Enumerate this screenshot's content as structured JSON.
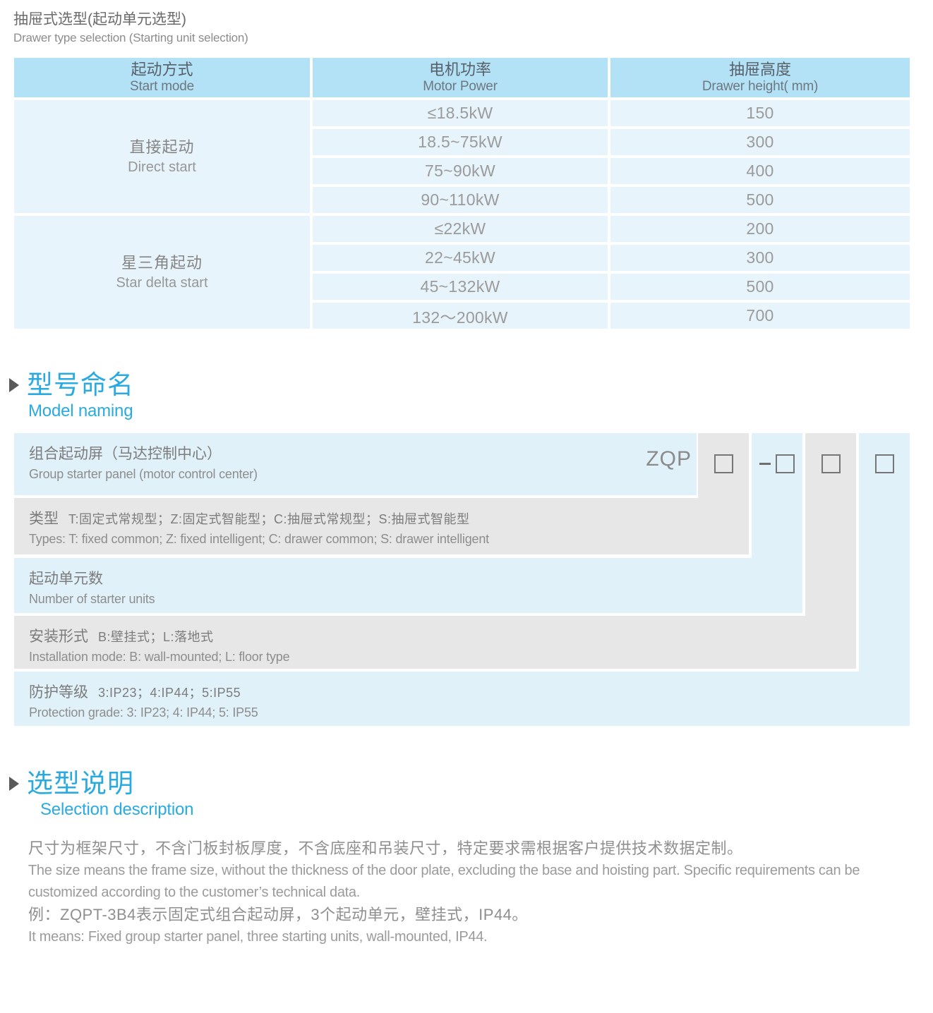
{
  "doc": {
    "title_zh": "抽屉式选型(起动单元选型)",
    "title_en": "Drawer type selection (Starting unit selection)"
  },
  "table": {
    "headers": [
      {
        "zh": "起动方式",
        "en": "Start mode"
      },
      {
        "zh": "电机功率",
        "en": "Motor Power"
      },
      {
        "zh": "抽屉高度",
        "en": "Drawer height( mm)"
      }
    ],
    "groups": [
      {
        "zh": "直接起动",
        "en": "Direct start",
        "rows": [
          {
            "power": "≤18.5kW",
            "height": "150"
          },
          {
            "power": "18.5~75kW",
            "height": "300"
          },
          {
            "power": "75~90kW",
            "height": "400"
          },
          {
            "power": "90~110kW",
            "height": "500"
          }
        ]
      },
      {
        "zh": "星三角起动",
        "en": "Star delta start",
        "rows": [
          {
            "power": "≤22kW",
            "height": "200"
          },
          {
            "power": "22~45kW",
            "height": "300"
          },
          {
            "power": "45~132kW",
            "height": "500"
          },
          {
            "power": "132～200kW",
            "height": "700"
          }
        ]
      }
    ]
  },
  "model_naming": {
    "heading_zh": "型号命名",
    "heading_en": "Model naming",
    "code": "ZQP",
    "rows": [
      {
        "zh": "组合起动屏（马达控制中心）",
        "en": "Group starter panel (motor control center)"
      },
      {
        "label_zh": "类型",
        "detail_zh": "T:固定式常规型；Z:固定式智能型；C:抽屉式常规型；S:抽屉式智能型",
        "en": "Types: T: fixed common; Z: fixed intelligent; C: drawer common; S: drawer intelligent"
      },
      {
        "label_zh": "起动单元数",
        "en": "Number of starter units"
      },
      {
        "label_zh": "安装形式",
        "detail_zh": "B:壁挂式；L:落地式",
        "en": "Installation mode: B: wall-mounted; L: floor type"
      },
      {
        "label_zh": "防护等级",
        "detail_zh": "3:IP23；4:IP44；5:IP55",
        "en": "Protection grade:  3: IP23; 4: IP44; 5: IP55"
      }
    ]
  },
  "selection": {
    "heading_zh": "选型说明",
    "heading_en": "Selection description",
    "lines": [
      "尺寸为框架尺寸，不含门板封板厚度，不含底座和吊装尺寸，特定要求需根据客户提供技术数据定制。",
      "The size means the frame size, without the thickness of the door plate, excluding the base and hoisting part. Specific requirements can be",
      "customized according to the customer’s technical data.",
      "例：ZQPT-3B4表示固定式组合起动屏，3个起动单元，壁挂式，IP44。",
      "It means: Fixed group starter panel, three starting units, wall-mounted, IP44."
    ]
  },
  "colors": {
    "accent_blue": "#29abe2",
    "table_header_blue": "#b3e1f5",
    "table_row_blue": "#e7f4fb",
    "band_blue": "#e1f1fa",
    "band_gray": "#e7e7e7"
  }
}
